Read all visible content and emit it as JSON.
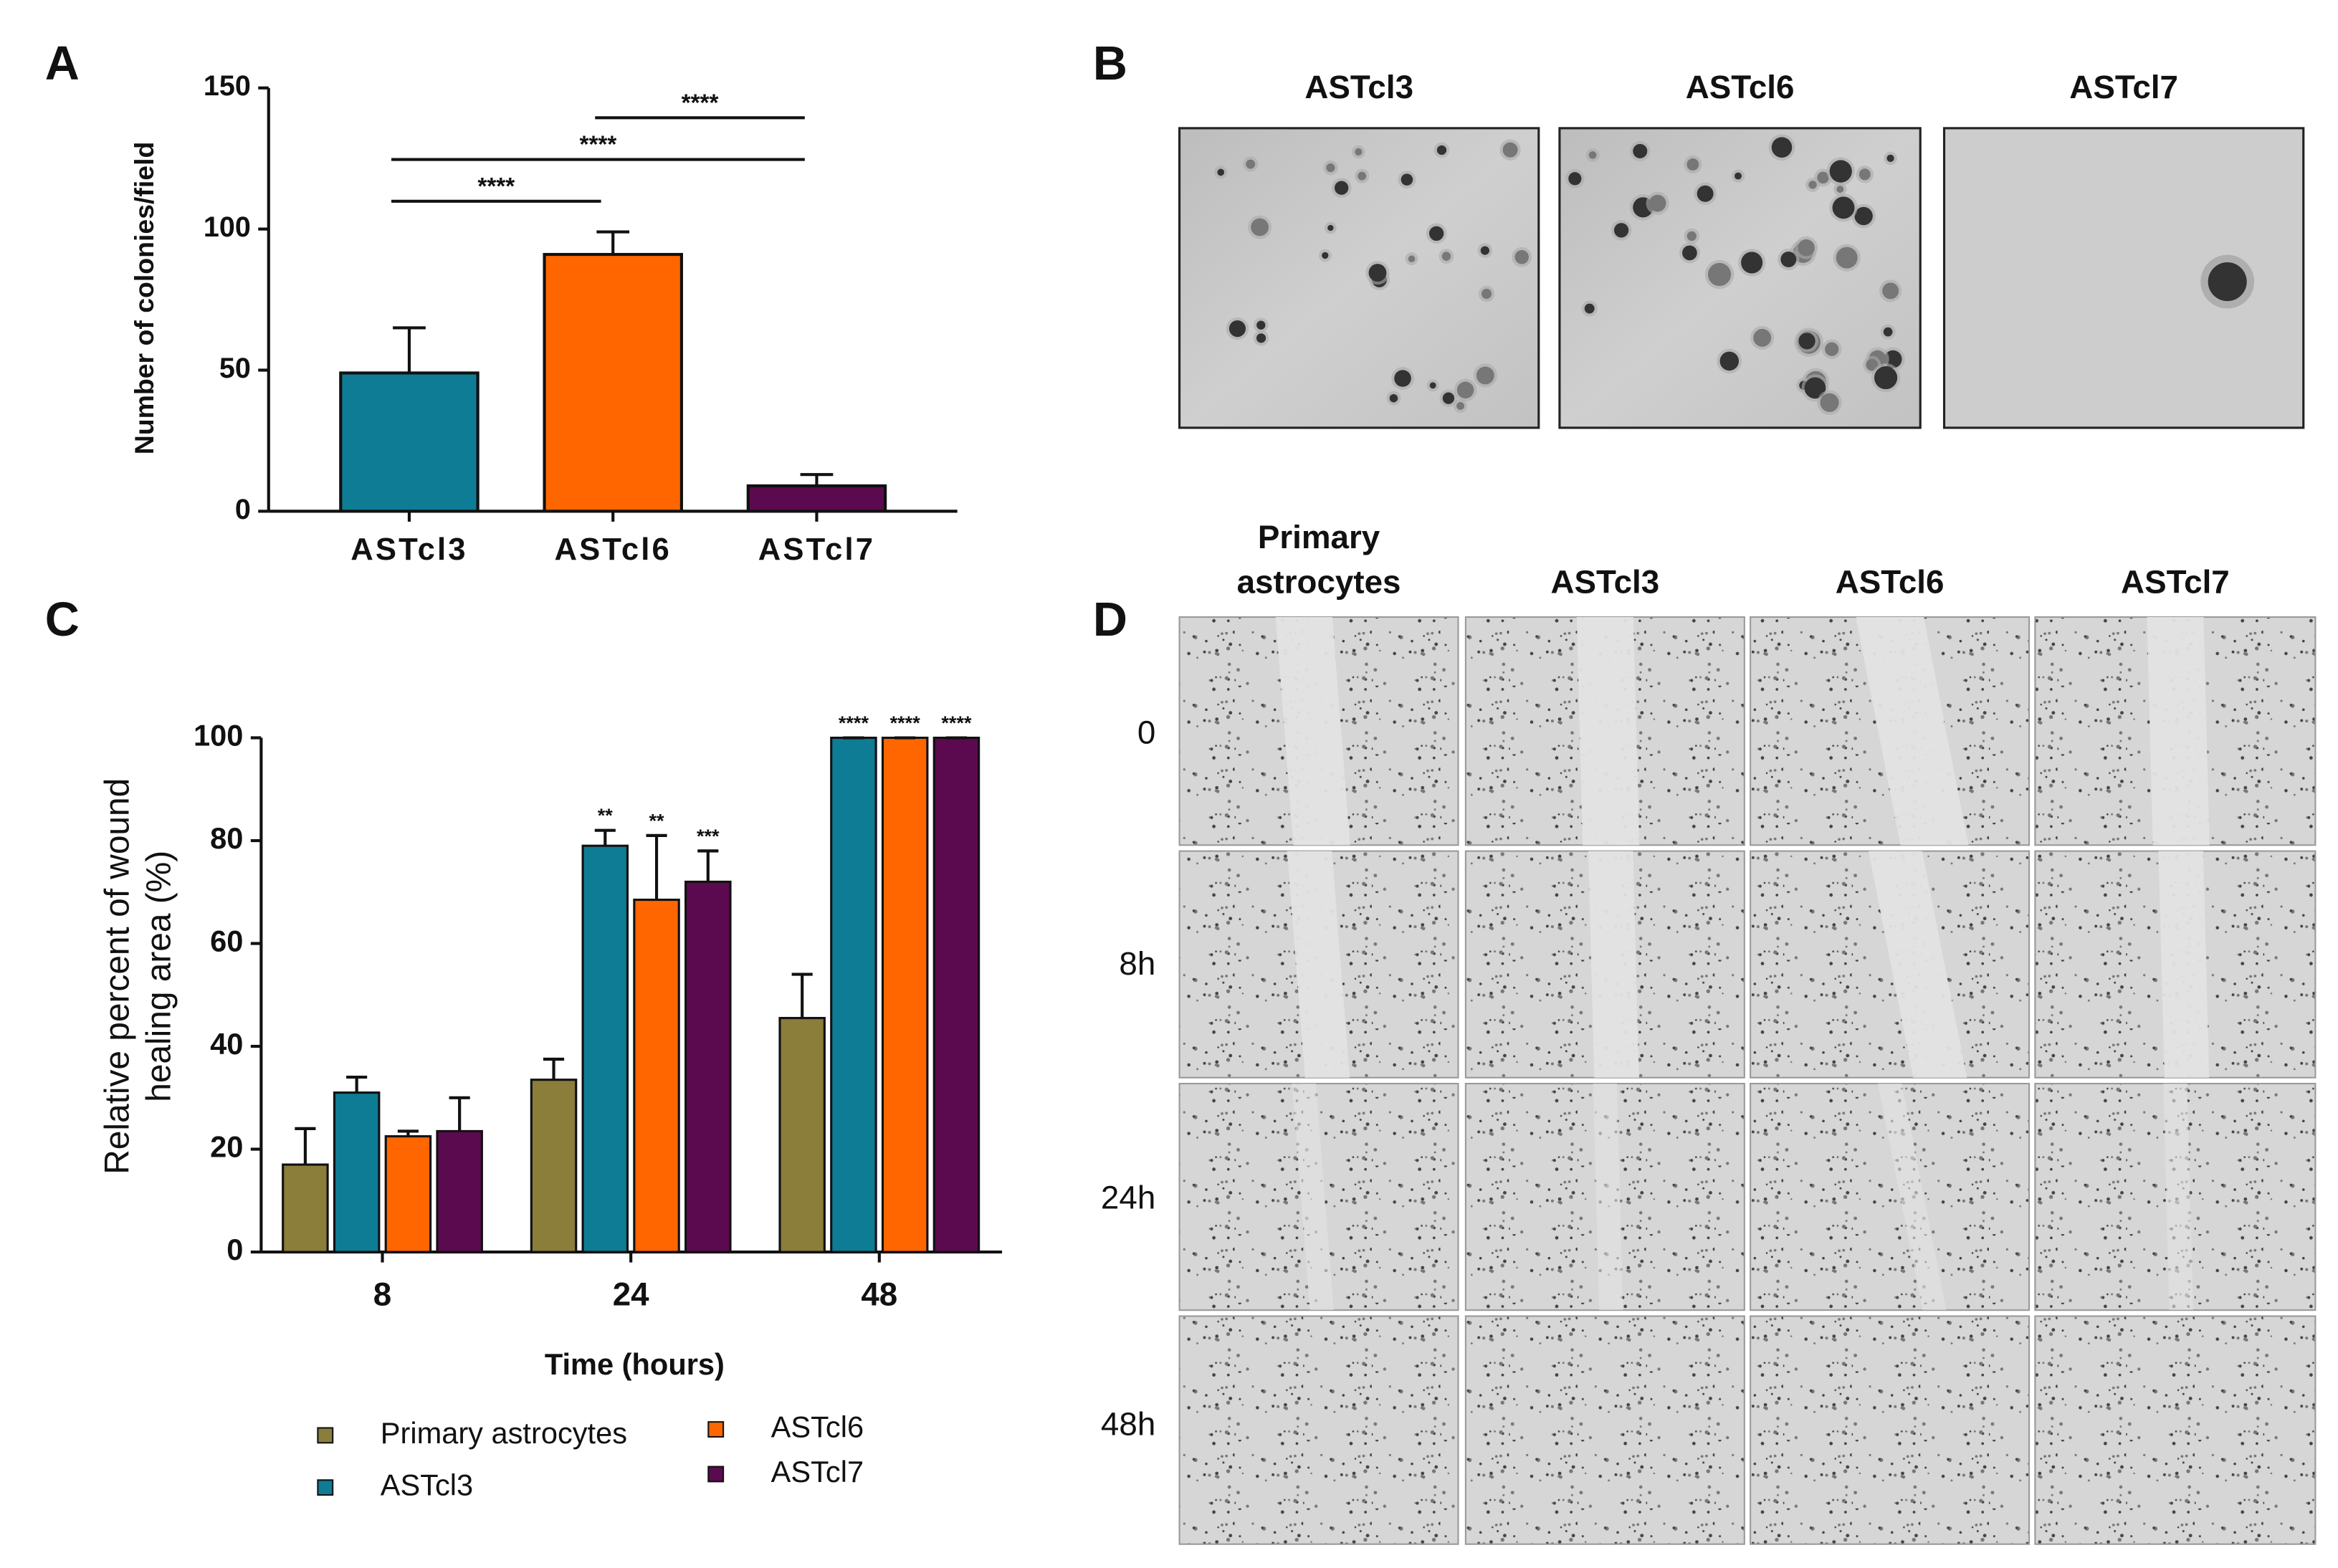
{
  "panel_labels": [
    "A",
    "B",
    "C",
    "D"
  ],
  "chart_data": [
    {
      "type": "bar",
      "ylabel": "Number of colonies/field",
      "categories": [
        "ASTcl3",
        "ASTcl6",
        "ASTcl7"
      ],
      "values": [
        49,
        91,
        9
      ],
      "errors": [
        16,
        8,
        4
      ],
      "colors": [
        "#0e7c94",
        "#ff6600",
        "#5b0a4f"
      ],
      "ylim": [
        0,
        150
      ],
      "yticks": [
        0,
        50,
        100,
        150
      ],
      "annotations": [
        "****",
        "****",
        "****"
      ]
    },
    {
      "type": "bar",
      "xlabel": "Time (hours)",
      "ylabel": [
        "Relative percent of wound",
        "healing area (%)"
      ],
      "categories": [
        "8",
        "24",
        "48"
      ],
      "series": [
        {
          "name": "Primary astrocytes",
          "color": "#8b7d3a",
          "values": [
            17,
            33.5,
            45.5
          ],
          "errors": [
            7,
            4,
            8.5
          ],
          "annotations": [
            null,
            null,
            null
          ]
        },
        {
          "name": "ASTcl3",
          "color": "#0e7c94",
          "values": [
            31,
            79,
            100
          ],
          "errors": [
            3,
            3,
            0
          ],
          "annotations": [
            null,
            "**",
            "****"
          ]
        },
        {
          "name": "ASTcl6",
          "color": "#ff6600",
          "values": [
            22.5,
            68.5,
            100
          ],
          "errors": [
            1,
            12.5,
            0
          ],
          "annotations": [
            null,
            "**",
            "****"
          ]
        },
        {
          "name": "ASTcl7",
          "color": "#5b0a4f",
          "values": [
            23.5,
            72,
            100
          ],
          "errors": [
            6.5,
            6,
            0
          ],
          "annotations": [
            null,
            "***",
            "****"
          ]
        }
      ],
      "ylim": [
        0,
        100
      ],
      "yticks": [
        0,
        20,
        40,
        60,
        80,
        100
      ]
    }
  ],
  "colony_images": {
    "titles": [
      "ASTcl3",
      "ASTcl6",
      "ASTcl7"
    ]
  },
  "wound_images": {
    "columns": [
      [
        "Primary",
        "astrocytes"
      ],
      [
        "ASTcl3"
      ],
      [
        "ASTcl6"
      ],
      [
        "ASTcl7"
      ]
    ],
    "rows": [
      "0",
      "8h",
      "24h",
      "48h"
    ]
  }
}
